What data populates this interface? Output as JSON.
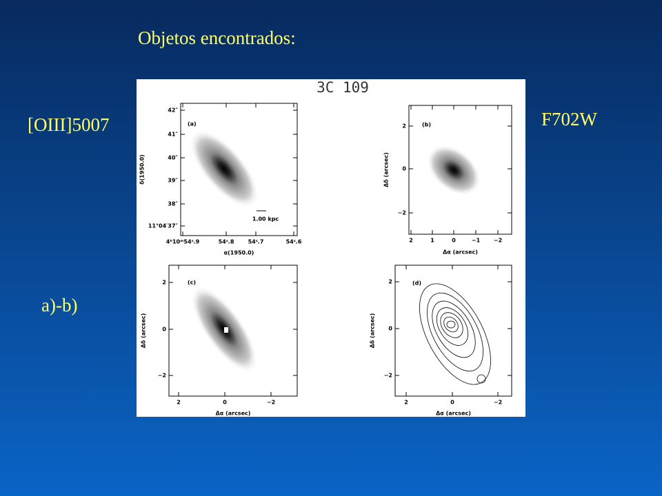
{
  "slide": {
    "title": "Objetos encontrados:",
    "left_label": "[OIII]5007",
    "right_label": "F702W",
    "bottom_label": "a)-b)"
  },
  "figure": {
    "title": "3C 109",
    "panels": [
      {
        "label": "(a)",
        "xlabel": "α(1950.0)",
        "ylabel": "δ(1950.0)",
        "scale_bar": "1.00 kpc",
        "yticks": [
          "42″",
          "41″",
          "40″",
          "39″",
          "38″",
          "11°04′37″"
        ],
        "xticks": [
          "4ʰ10ᵐ54ˢ.9",
          "54ˢ.8",
          "54ˢ.7",
          "54ˢ.6"
        ]
      },
      {
        "label": "(b)",
        "xlabel": "Δα (arcsec)",
        "ylabel": "Δδ (arcsec)",
        "yticks": [
          "2",
          "0",
          "−2"
        ],
        "xticks": [
          "2",
          "1",
          "0",
          "−1",
          "−2"
        ]
      },
      {
        "label": "(c)",
        "xlabel": "Δα (arcsec)",
        "ylabel": "Δδ (arcsec)",
        "yticks": [
          "2",
          "0",
          "−2"
        ],
        "xticks": [
          "2",
          "0",
          "−2"
        ]
      },
      {
        "label": "(d)",
        "xlabel": "Δα (arcsec)",
        "ylabel": "Δδ (arcsec)",
        "yticks": [
          "2",
          "0",
          "−2"
        ],
        "xticks": [
          "2",
          "0",
          "−2"
        ]
      }
    ]
  }
}
